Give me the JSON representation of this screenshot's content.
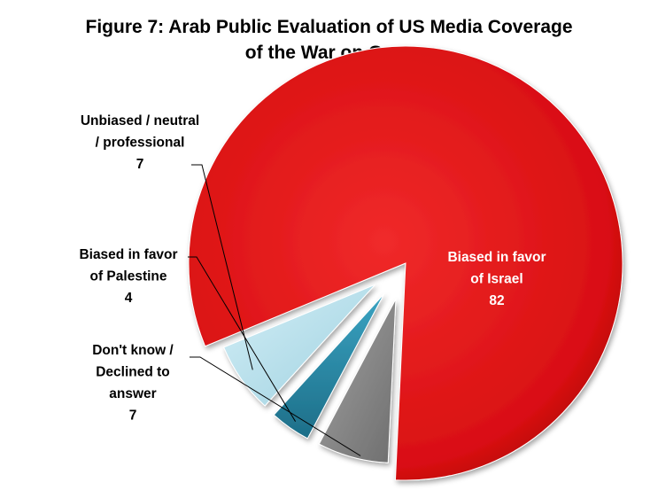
{
  "chart_data": {
    "type": "pie",
    "title": "Figure 7: Arab Public Evaluation of US Media Coverage of the War on Gaza",
    "title_lines": [
      "Figure 7: Arab Public Evaluation of US Media Coverage",
      "of the War on Gaza"
    ],
    "categories": [
      "Biased in favor of Israel",
      "Don't know / Declined to answer",
      "Biased in favor of Palestine",
      "Unbiased / neutral / professional"
    ],
    "values": [
      82,
      7,
      4,
      7
    ],
    "slices": [
      {
        "label_lines": [
          "Biased in favor",
          "of Israel"
        ],
        "value": "82",
        "color": "#e8161a",
        "exploded": false,
        "label_position": "inside"
      },
      {
        "label_lines": [
          "Don't know /",
          "Declined to",
          "answer"
        ],
        "value": "7",
        "color": "#8c8c8c",
        "exploded": true,
        "label_position": "outside-left"
      },
      {
        "label_lines": [
          "Biased in favor",
          "of Palestine"
        ],
        "value": "4",
        "color": "#2a8ba8",
        "exploded": true,
        "label_position": "outside-left"
      },
      {
        "label_lines": [
          "Unbiased / neutral",
          "/ professional"
        ],
        "value": "7",
        "color": "#b5e0ec",
        "exploded": true,
        "label_position": "outside-left"
      }
    ],
    "legend": "none",
    "colors": {
      "israel": "#e8161a",
      "dont_know": "#8c8c8c",
      "palestine": "#2a8ba8",
      "unbiased": "#b5e0ec"
    }
  }
}
